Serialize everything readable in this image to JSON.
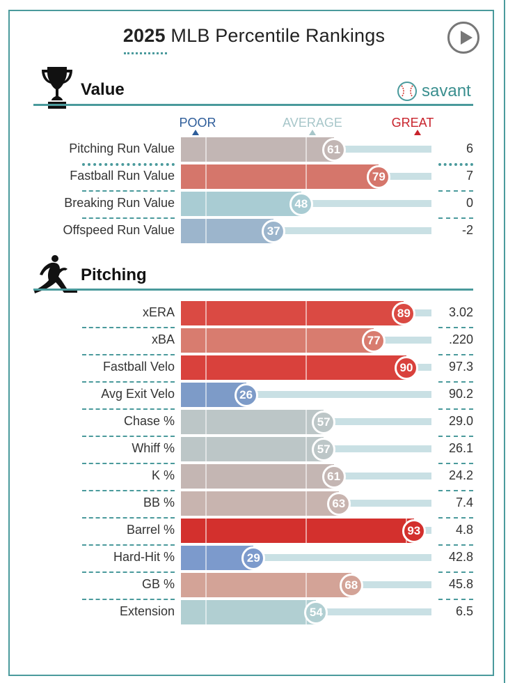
{
  "title": {
    "year": "2025",
    "rest": "MLB Percentile Rankings"
  },
  "icons": {
    "play": "play-icon",
    "trophy": "trophy-icon",
    "pitcher": "pitcher-icon",
    "baseball": "baseball-icon"
  },
  "brand": {
    "savant": "savant",
    "accent": "#4a9a9c",
    "savant_color": "#3a8f8f"
  },
  "legend": {
    "poor": "POOR",
    "average": "AVERAGE",
    "great": "GREAT",
    "poor_color": "#2e5d9a",
    "average_color": "#a7c6c9",
    "great_color": "#c8232c"
  },
  "chart_data": [
    {
      "type": "bar",
      "section": "Value",
      "xlim": [
        0,
        100
      ],
      "categories": [
        "Pitching Run Value",
        "Fastball Run Value",
        "Breaking Run Value",
        "Offspeed Run Value"
      ],
      "percentiles": [
        61,
        79,
        48,
        37
      ],
      "values": [
        "6",
        "7",
        "0",
        "-2"
      ],
      "colors": [
        "#c2b6b4",
        "#d5766b",
        "#a9ccd3",
        "#9cb5cc"
      ]
    },
    {
      "type": "bar",
      "section": "Pitching",
      "xlim": [
        0,
        100
      ],
      "categories": [
        "xERA",
        "xBA",
        "Fastball Velo",
        "Avg Exit Velo",
        "Chase %",
        "Whiff %",
        "K %",
        "BB %",
        "Barrel %",
        "Hard-Hit %",
        "GB %",
        "Extension"
      ],
      "percentiles": [
        89,
        77,
        90,
        26,
        57,
        57,
        61,
        63,
        93,
        29,
        68,
        54
      ],
      "values": [
        "3.02",
        ".220",
        "97.3",
        "90.2",
        "29.0",
        "26.1",
        "24.2",
        "7.4",
        "4.8",
        "42.8",
        "45.8",
        "6.5"
      ],
      "colors": [
        "#da4a43",
        "#d87c6f",
        "#d9413c",
        "#7d9bc8",
        "#bcc6c7",
        "#bcc6c7",
        "#c4b6b3",
        "#c8b4af",
        "#d3302d",
        "#7c9acc",
        "#d3a397",
        "#b1cfd2"
      ]
    }
  ]
}
